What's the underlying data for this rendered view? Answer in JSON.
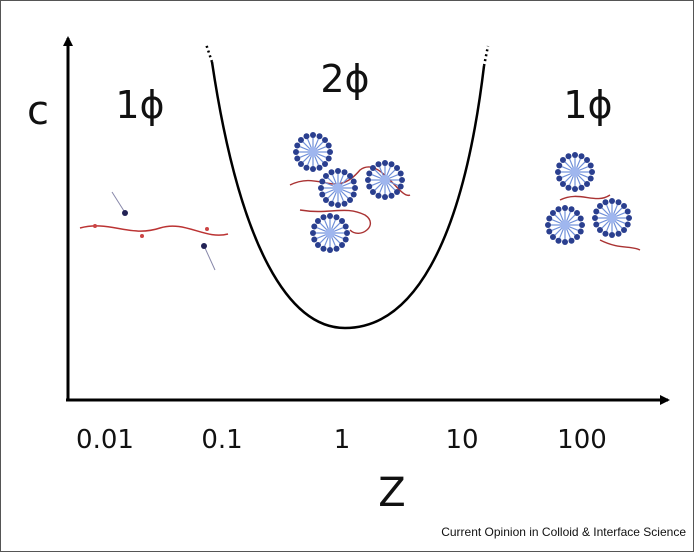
{
  "diagram": {
    "y_axis_label": "c",
    "x_axis_label": "Z",
    "x_ticks": [
      "0.01",
      "0.1",
      "1",
      "10",
      "100"
    ],
    "regions": [
      {
        "label": "1ϕ"
      },
      {
        "label": "2ϕ"
      },
      {
        "label": "1ϕ"
      }
    ],
    "credit": "Current Opinion in Colloid & Interface Science"
  }
}
